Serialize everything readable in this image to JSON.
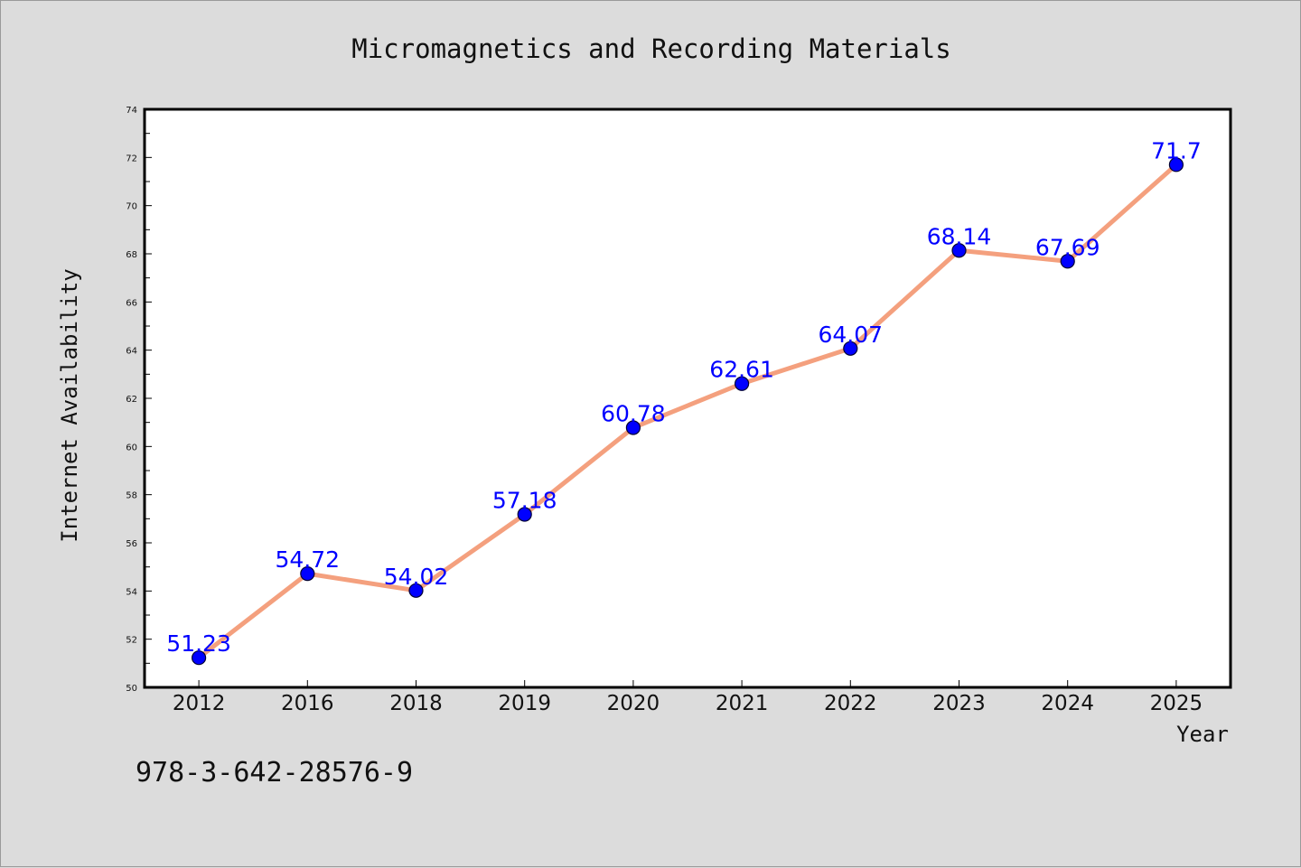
{
  "chart_data": {
    "type": "line",
    "title": "Micromagnetics and Recording Materials",
    "xlabel": "Year",
    "ylabel": "Internet Availability",
    "categories": [
      "2012",
      "2016",
      "2018",
      "2019",
      "2020",
      "2021",
      "2022",
      "2023",
      "2024",
      "2025"
    ],
    "series": [
      {
        "values": [
          51.23,
          54.72,
          54.02,
          57.18,
          60.78,
          62.61,
          64.07,
          68.14,
          67.69,
          71.7
        ],
        "labels": [
          "51.23",
          "54.72",
          "54.02",
          "57.18",
          "60.78",
          "62.61",
          "64.07",
          "68.14",
          "67.69",
          "71.7"
        ]
      }
    ],
    "ylim": [
      50,
      74
    ],
    "yticks": [
      "50",
      "52",
      "54",
      "56",
      "58",
      "60",
      "62",
      "64",
      "66",
      "68",
      "70",
      "72",
      "74"
    ],
    "grid": false,
    "legend": "none",
    "colors": {
      "line": "#f4a07e",
      "marker": "#0000ff",
      "marker_edge": "#000033",
      "label": "#0000ff",
      "plot_bg": "#ffffff",
      "page_bg": "#dcdcdc"
    }
  },
  "footer": {
    "isbn": "978-3-642-28576-9"
  }
}
